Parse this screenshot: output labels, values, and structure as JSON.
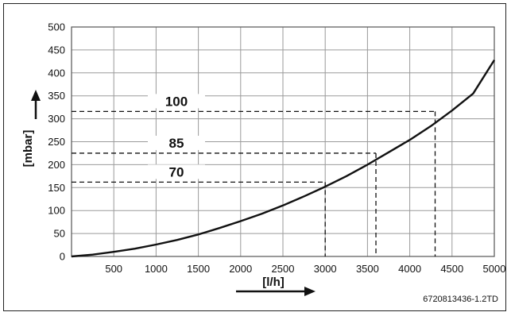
{
  "chart_data": {
    "type": "line",
    "xlabel": "[l/h]",
    "ylabel": "[mbar]",
    "xlim": [
      0,
      5000
    ],
    "ylim": [
      0,
      500
    ],
    "x_ticks": [
      "500",
      "1000",
      "1500",
      "2000",
      "2500",
      "3000",
      "3500",
      "4000",
      "4500",
      "5000"
    ],
    "y_ticks": [
      "0",
      "50",
      "100",
      "150",
      "200",
      "250",
      "300",
      "350",
      "400",
      "450",
      "500"
    ],
    "grid": true,
    "series": [
      {
        "x": [
          0,
          250,
          500,
          750,
          1000,
          1250,
          1500,
          1750,
          2000,
          2250,
          2500,
          2750,
          3000,
          3250,
          3500,
          3750,
          4000,
          4250,
          4500,
          4750,
          5000
        ],
        "y": [
          0,
          4,
          10,
          17,
          26,
          36,
          48,
          62,
          77,
          93,
          111,
          131,
          152,
          175,
          200,
          227,
          254,
          284,
          318,
          355,
          428
        ]
      }
    ],
    "annotations": [
      {
        "label": "100",
        "x": 4300,
        "y": 316
      },
      {
        "label": "85",
        "x": 3600,
        "y": 225
      },
      {
        "label": "70",
        "x": 3000,
        "y": 162
      }
    ],
    "reference_code": "6720813436-1.2TD"
  }
}
